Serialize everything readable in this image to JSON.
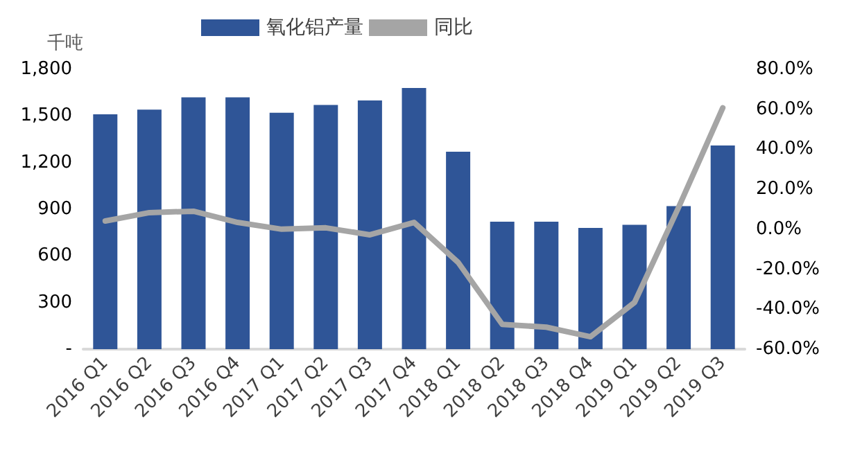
{
  "chart_data": {
    "type": "bar",
    "ylabel": "千吨",
    "categories": [
      "2016 Q1",
      "2016 Q2",
      "2016 Q3",
      "2016 Q4",
      "2017 Q1",
      "2017 Q2",
      "2017 Q3",
      "2017 Q4",
      "2018 Q1",
      "2018 Q2",
      "2018 Q3",
      "2018 Q4",
      "2019 Q1",
      "2019 Q2",
      "2019 Q3"
    ],
    "series": [
      {
        "name": "氧化铝产量",
        "color": "#2f5597",
        "values": [
          1510,
          1540,
          1620,
          1620,
          1520,
          1570,
          1600,
          1680,
          1270,
          820,
          820,
          780,
          800,
          920,
          1310
        ]
      },
      {
        "name": "同比",
        "type": "line",
        "axis": "y2",
        "color": "#a5a5a5",
        "values": [
          4.1,
          8.3,
          9.0,
          3.4,
          0.0,
          0.7,
          -2.8,
          3.4,
          -16.6,
          -47.6,
          -49.0,
          -53.8,
          -36.6,
          11.0,
          60.7
        ]
      }
    ],
    "ylim": [
      0,
      1800
    ],
    "yticks": [
      {
        "value": 0,
        "label": "-"
      },
      {
        "value": 300,
        "label": "300"
      },
      {
        "value": 600,
        "label": "600"
      },
      {
        "value": 900,
        "label": "900"
      },
      {
        "value": 1200,
        "label": "1,200"
      },
      {
        "value": 1500,
        "label": "1,500"
      },
      {
        "value": 1800,
        "label": "1,800"
      }
    ],
    "y2lim": [
      -60,
      80
    ],
    "y2ticks": [
      {
        "value": -60,
        "label": "-60.0%"
      },
      {
        "value": -40,
        "label": "-40.0%"
      },
      {
        "value": -20,
        "label": "-20.0%"
      },
      {
        "value": 0,
        "label": "0.0%"
      },
      {
        "value": 20,
        "label": "20.0%"
      },
      {
        "value": 40,
        "label": "40.0%"
      },
      {
        "value": 60,
        "label": "60.0%"
      },
      {
        "value": 80,
        "label": "80.0%"
      }
    ],
    "legend": "top",
    "grid": false,
    "marker": "none"
  }
}
